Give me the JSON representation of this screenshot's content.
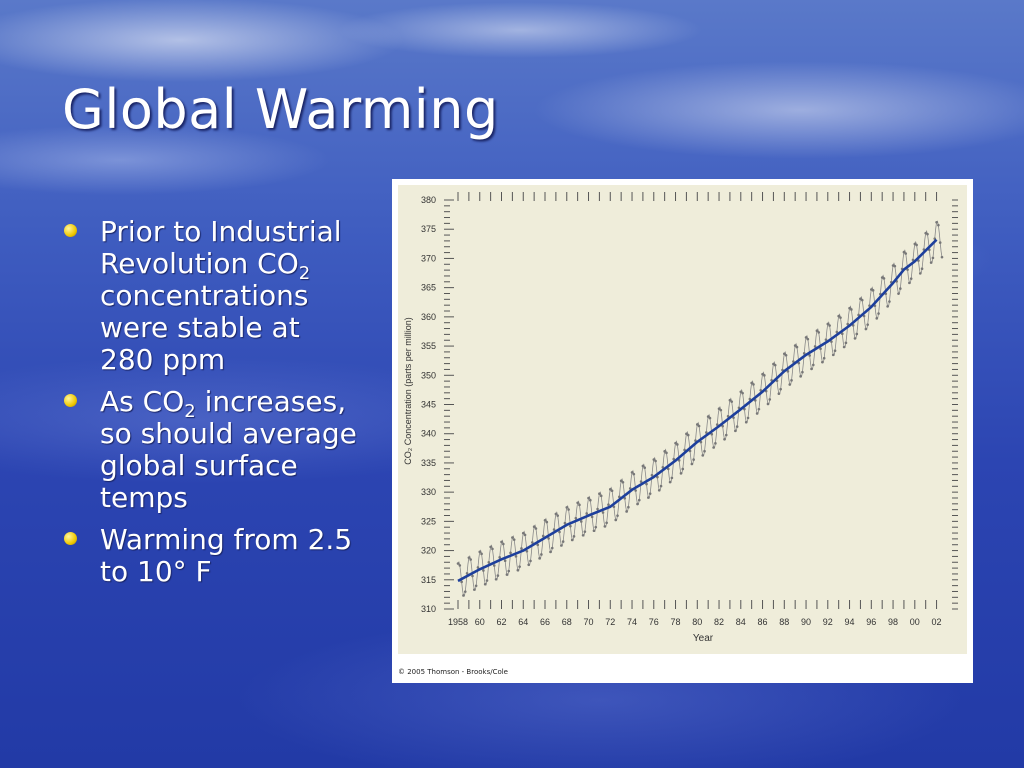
{
  "slide": {
    "title": "Global Warming",
    "bullets": [
      {
        "text": "Prior to Industrial Revolution CO",
        "sub": "2",
        "after": " concentrations were stable at 280 ppm"
      },
      {
        "text": "As CO",
        "sub": "2",
        "after": " increases, so should average global surface temps"
      },
      {
        "text": "Warming from 2.5 to 10° F",
        "sub": "",
        "after": ""
      }
    ]
  },
  "figure": {
    "copyright": "© 2005 Thomson - Brooks/Cole",
    "plot_bg": "#efedda",
    "line_color": "#1d3f9c",
    "seasonal_color": "#888888"
  },
  "chart_data": {
    "type": "line",
    "title": "",
    "xlabel": "Year",
    "ylabel": "CO₂ Concentration (parts per million)",
    "xlim": [
      1958,
      2002.5
    ],
    "ylim": [
      310,
      380
    ],
    "yticks": [
      310,
      315,
      320,
      325,
      330,
      335,
      340,
      345,
      350,
      355,
      360,
      365,
      370,
      375,
      380
    ],
    "xtick_labels": [
      {
        "x": 1958,
        "label": "1958"
      },
      {
        "x": 1960,
        "label": "60"
      },
      {
        "x": 1962,
        "label": "62"
      },
      {
        "x": 1964,
        "label": "64"
      },
      {
        "x": 1966,
        "label": "66"
      },
      {
        "x": 1968,
        "label": "68"
      },
      {
        "x": 1970,
        "label": "70"
      },
      {
        "x": 1972,
        "label": "72"
      },
      {
        "x": 1974,
        "label": "74"
      },
      {
        "x": 1976,
        "label": "76"
      },
      {
        "x": 1978,
        "label": "78"
      },
      {
        "x": 1980,
        "label": "80"
      },
      {
        "x": 1982,
        "label": "82"
      },
      {
        "x": 1984,
        "label": "84"
      },
      {
        "x": 1986,
        "label": "86"
      },
      {
        "x": 1988,
        "label": "88"
      },
      {
        "x": 1990,
        "label": "90"
      },
      {
        "x": 1992,
        "label": "92"
      },
      {
        "x": 1994,
        "label": "94"
      },
      {
        "x": 1996,
        "label": "96"
      },
      {
        "x": 1998,
        "label": "98"
      },
      {
        "x": 2000,
        "label": "00"
      },
      {
        "x": 2002,
        "label": "02"
      }
    ],
    "series": [
      {
        "kind": "annual-trend",
        "x": [
          1958,
          1960,
          1962,
          1964,
          1966,
          1968,
          1970,
          1972,
          1974,
          1976,
          1978,
          1980,
          1982,
          1984,
          1986,
          1988,
          1990,
          1992,
          1994,
          1996,
          1998,
          1999,
          2000,
          2002
        ],
        "y": [
          314.8,
          316.8,
          318.5,
          320.0,
          322.2,
          324.4,
          326.0,
          327.5,
          330.4,
          332.6,
          335.4,
          338.6,
          341.3,
          344.2,
          347.2,
          350.7,
          353.5,
          355.8,
          358.5,
          361.7,
          365.8,
          368.1,
          369.5,
          373.2
        ]
      },
      {
        "kind": "monthly-seasonal",
        "amplitude": 3.2
      }
    ]
  }
}
